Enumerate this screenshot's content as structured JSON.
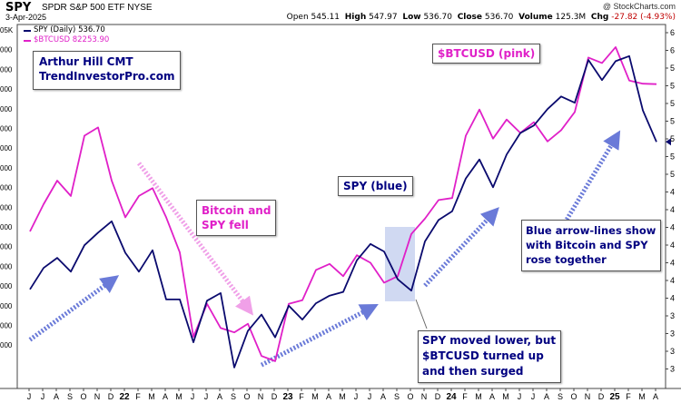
{
  "header": {
    "ticker": "SPY",
    "fullname": "SPDR S&P 500 ETF  NYSE",
    "copyright": "@ StockCharts.com",
    "date": "3-Apr-2025",
    "open_label": "Open",
    "open": "545.11",
    "high_label": "High",
    "high": "547.97",
    "low_label": "Low",
    "low": "536.70",
    "close_label": "Close",
    "close": "536.70",
    "volume_label": "Volume",
    "volume": "125.3M",
    "chg_label": "Chg",
    "chg": "-27.82 (-4.93%)"
  },
  "legend": {
    "spy": "SPY (Daily) 536.70",
    "btc": "$BTCUSD 82253.90"
  },
  "annotations": {
    "author_line1": "Arthur Hill CMT",
    "author_line2": "TrendInvestorPro.com",
    "btc_label": "$BTCUSD (pink)",
    "spy_label": "SPY (blue)",
    "fell_line1": "Bitcoin and",
    "fell_line2": "SPY fell",
    "arrows_line1": "Blue arrow-lines show",
    "arrows_line2": "with Bitcoin and SPY",
    "arrows_line3": "rose together",
    "moved_line1": "SPY moved lower, but",
    "moved_line2": "$BTCUSD turned up",
    "moved_line3": "and then surged"
  },
  "colors": {
    "spy": "#0a0a6e",
    "btc": "#e020c8",
    "arrow_blue": "#6a7ad8",
    "arrow_pink": "#f0a0e8",
    "highlight": "#c8d2f0",
    "annotation_text_blue": "#000080",
    "annotation_text_pink": "#e020c8"
  },
  "chart_data": {
    "type": "line",
    "xlabel": "",
    "ylabel": "",
    "x_tick_labels": [
      "J",
      "J",
      "A",
      "S",
      "O",
      "N",
      "D",
      "22",
      "F",
      "M",
      "A",
      "M",
      "J",
      "J",
      "A",
      "S",
      "O",
      "N",
      "D",
      "23",
      "F",
      "M",
      "A",
      "M",
      "J",
      "J",
      "A",
      "S",
      "O",
      "N",
      "D",
      "24",
      "F",
      "M",
      "A",
      "M",
      "J",
      "J",
      "A",
      "S",
      "O",
      "N",
      "D",
      "25",
      "F",
      "M",
      "A"
    ],
    "right_axis_ticks_visible": [
      "6",
      "6",
      "5",
      "5",
      "5",
      "5",
      "5",
      "5",
      "5",
      "4",
      "4",
      "4",
      "4",
      "4",
      "4",
      "4",
      "3",
      "3",
      "3",
      "3"
    ],
    "left_axis_ticks_visible": [
      "05K",
      "000",
      "000",
      "000",
      "000",
      "000",
      "000",
      "000",
      "000",
      "000",
      "000",
      "000",
      "000",
      "000",
      "000",
      "000",
      "000"
    ],
    "series": [
      {
        "name": "SPY (Daily) 536.70",
        "color": "#0a0a6e",
        "axis": "right",
        "x": [
          "2021-06",
          "2021-07",
          "2021-08",
          "2021-09",
          "2021-10",
          "2021-11",
          "2021-12",
          "2022-01",
          "2022-02",
          "2022-03",
          "2022-04",
          "2022-05",
          "2022-06",
          "2022-07",
          "2022-08",
          "2022-09",
          "2022-10",
          "2022-11",
          "2022-12",
          "2023-01",
          "2023-02",
          "2023-03",
          "2023-04",
          "2023-05",
          "2023-06",
          "2023-07",
          "2023-08",
          "2023-09",
          "2023-10",
          "2023-11",
          "2023-12",
          "2024-01",
          "2024-02",
          "2024-03",
          "2024-04",
          "2024-05",
          "2024-06",
          "2024-07",
          "2024-08",
          "2024-09",
          "2024-10",
          "2024-11",
          "2024-12",
          "2025-01",
          "2025-02",
          "2025-03",
          "2025-04"
        ],
        "y": [
          420,
          437,
          445,
          434,
          455,
          465,
          474,
          449,
          434,
          451,
          412,
          412,
          378,
          411,
          417,
          358,
          387,
          400,
          382,
          407,
          396,
          409,
          415,
          418,
          443,
          456,
          450,
          428,
          419,
          458,
          475,
          482,
          508,
          523,
          501,
          527,
          544,
          550,
          563,
          573,
          568,
          602,
          586,
          601,
          605,
          562,
          537
        ]
      },
      {
        "name": "$BTCUSD 82253.90",
        "color": "#e020c8",
        "axis": "left",
        "x": [
          "2021-06",
          "2021-07",
          "2021-08",
          "2021-09",
          "2021-10",
          "2021-11",
          "2021-12",
          "2022-01",
          "2022-02",
          "2022-03",
          "2022-04",
          "2022-05",
          "2022-06",
          "2022-07",
          "2022-08",
          "2022-09",
          "2022-10",
          "2022-11",
          "2022-12",
          "2023-01",
          "2023-02",
          "2023-03",
          "2023-04",
          "2023-05",
          "2023-06",
          "2023-07",
          "2023-08",
          "2023-09",
          "2023-10",
          "2023-11",
          "2023-12",
          "2024-01",
          "2024-02",
          "2024-03",
          "2024-04",
          "2024-05",
          "2024-06",
          "2024-07",
          "2024-08",
          "2024-09",
          "2024-10",
          "2024-11",
          "2024-12",
          "2025-01",
          "2025-02",
          "2025-03",
          "2025-04"
        ],
        "y": [
          35000,
          41000,
          47000,
          43000,
          61000,
          64000,
          47000,
          38000,
          43000,
          45000,
          38000,
          31000,
          19000,
          23000,
          20000,
          19500,
          20500,
          17000,
          16500,
          23000,
          23500,
          28000,
          29000,
          27000,
          30500,
          29200,
          26000,
          27000,
          34500,
          37700,
          42000,
          42500,
          61000,
          71000,
          60000,
          67000,
          62000,
          66000,
          59000,
          63000,
          70000,
          96000,
          93000,
          102000,
          84000,
          82500,
          82250
        ]
      }
    ]
  }
}
